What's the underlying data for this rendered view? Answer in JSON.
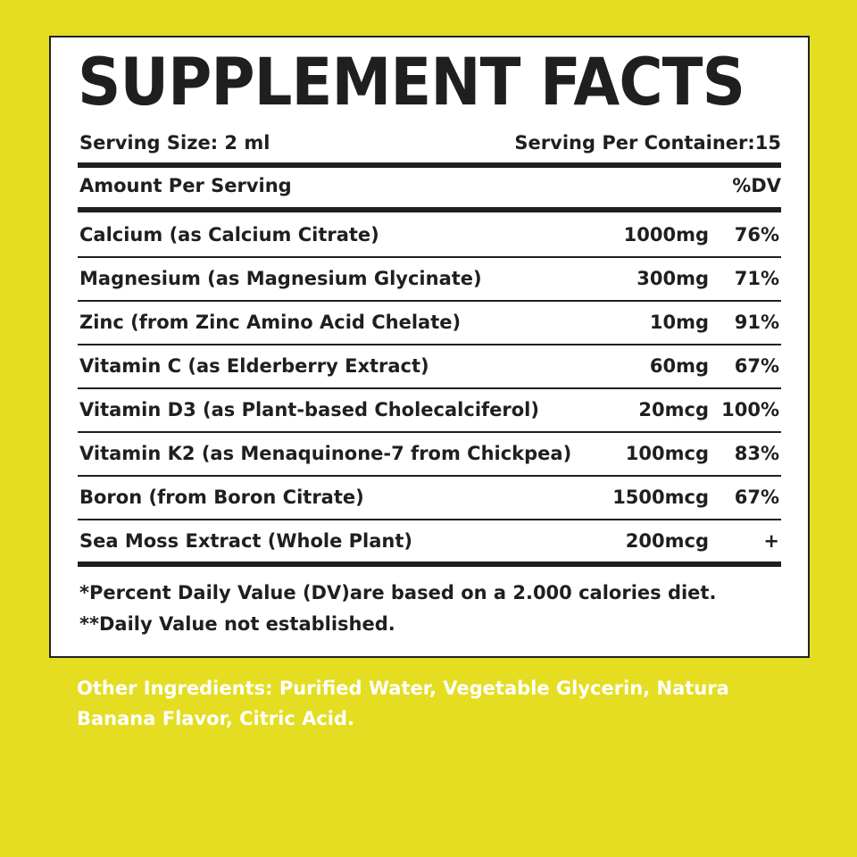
{
  "title": "SUPPLEMENT FACTS",
  "serving": {
    "size_label": "Serving Size: 2 ml",
    "per_container_label": "Serving Per Container:15"
  },
  "header": {
    "amount_label": "Amount Per Serving",
    "dv_label": "%DV"
  },
  "rows": [
    {
      "name": "Calcium (as Calcium Citrate)",
      "amount": "1000mg",
      "dv": "76%"
    },
    {
      "name": "Magnesium (as Magnesium Glycinate)",
      "amount": "300mg",
      "dv": "71%"
    },
    {
      "name": "Zinc (from Zinc Amino Acid Chelate)",
      "amount": "10mg",
      "dv": "91%"
    },
    {
      "name": "Vitamin C (as Elderberry Extract)",
      "amount": "60mg",
      "dv": "67%"
    },
    {
      "name": "Vitamin D3 (as Plant-based Cholecalciferol)",
      "amount": "20mcg",
      "dv": "100%"
    },
    {
      "name": "Vitamin K2 (as Menaquinone-7 from Chickpea)",
      "amount": "100mcg",
      "dv": "83%"
    },
    {
      "name": "Boron (from Boron Citrate)",
      "amount": "1500mcg",
      "dv": "67%"
    },
    {
      "name": "Sea Moss Extract (Whole Plant)",
      "amount": "200mcg",
      "dv": "+"
    }
  ],
  "footnotes": {
    "dv_note": "*Percent Daily Value (DV)are based on a 2.000 calories diet.",
    "not_established": "**Daily Value not established."
  },
  "other_ingredients": {
    "line1": "Other Ingredients: Purified Water, Vegetable Glycerin, Natura",
    "line2": "Banana Flavor, Citric Acid."
  },
  "colors": {
    "background": "#e4dd22",
    "panel": "#ffffff",
    "text": "#1f1f1f",
    "other_ingredients_text": "#ffffff"
  }
}
